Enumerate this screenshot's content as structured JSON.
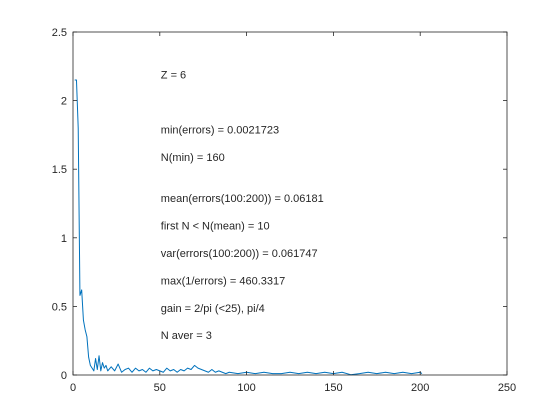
{
  "chart_data": {
    "type": "line",
    "xlim": [
      0,
      250
    ],
    "ylim": [
      0,
      2.5
    ],
    "x_ticks": [
      0,
      50,
      100,
      150,
      200,
      250
    ],
    "y_ticks": [
      0,
      0.5,
      1,
      1.5,
      2,
      2.5
    ],
    "x_tick_labels": [
      "0",
      "50",
      "100",
      "150",
      "200",
      "250"
    ],
    "y_tick_labels": [
      "0",
      "0.5",
      "1",
      "1.5",
      "2",
      "2.5"
    ],
    "grid": false,
    "series": [
      {
        "color": "#0072bd",
        "x": [
          1,
          2,
          3,
          4,
          5,
          6,
          7,
          8,
          9,
          10,
          11,
          12,
          13,
          14,
          15,
          16,
          17,
          18,
          19,
          20,
          22,
          24,
          26,
          28,
          30,
          32,
          34,
          36,
          38,
          40,
          42,
          44,
          46,
          48,
          50,
          52,
          54,
          56,
          58,
          60,
          62,
          64,
          66,
          68,
          70,
          72,
          74,
          76,
          78,
          80,
          82,
          84,
          86,
          88,
          90,
          95,
          100,
          105,
          110,
          115,
          120,
          125,
          130,
          135,
          140,
          145,
          150,
          155,
          160,
          165,
          170,
          175,
          180,
          185,
          190,
          195,
          200,
          201
        ],
        "y": [
          2.15,
          2.15,
          1.8,
          0.58,
          0.62,
          0.4,
          0.33,
          0.28,
          0.13,
          0.07,
          0.05,
          0.03,
          0.12,
          0.04,
          0.14,
          0.03,
          0.09,
          0.05,
          0.07,
          0.03,
          0.06,
          0.03,
          0.08,
          0.02,
          0.04,
          0.05,
          0.02,
          0.05,
          0.03,
          0.04,
          0.02,
          0.05,
          0.03,
          0.04,
          0.03,
          0.02,
          0.05,
          0.03,
          0.04,
          0.02,
          0.04,
          0.03,
          0.05,
          0.04,
          0.07,
          0.05,
          0.04,
          0.03,
          0.02,
          0.04,
          0.02,
          0.03,
          0.02,
          0.01,
          0.02,
          0.01,
          0.02,
          0.01,
          0.02,
          0.01,
          0.01,
          0.02,
          0.01,
          0.02,
          0.01,
          0.02,
          0.01,
          0.02,
          0.0022,
          0.01,
          0.02,
          0.01,
          0.02,
          0.01,
          0.02,
          0.01,
          0.02,
          0.01
        ]
      }
    ],
    "annotations": [
      {
        "text": "Z = 6",
        "x": 50,
        "y": 2.19
      },
      {
        "text": "min(errors) = 0.0021723",
        "x": 50,
        "y": 1.79
      },
      {
        "text": "N(min) = 160",
        "x": 50,
        "y": 1.59
      },
      {
        "text": "mean(errors(100:200)) = 0.06181",
        "x": 50,
        "y": 1.29
      },
      {
        "text": "first N < N(mean) = 10",
        "x": 50,
        "y": 1.09
      },
      {
        "text": "var(errors(100:200)) = 0.061747",
        "x": 50,
        "y": 0.89
      },
      {
        "text": "max(1/errors) = 460.3317",
        "x": 50,
        "y": 0.69
      },
      {
        "text": "gain = 2/pi (<25), pi/4",
        "x": 50,
        "y": 0.49
      },
      {
        "text": "N aver = 3",
        "x": 50,
        "y": 0.29
      }
    ]
  }
}
